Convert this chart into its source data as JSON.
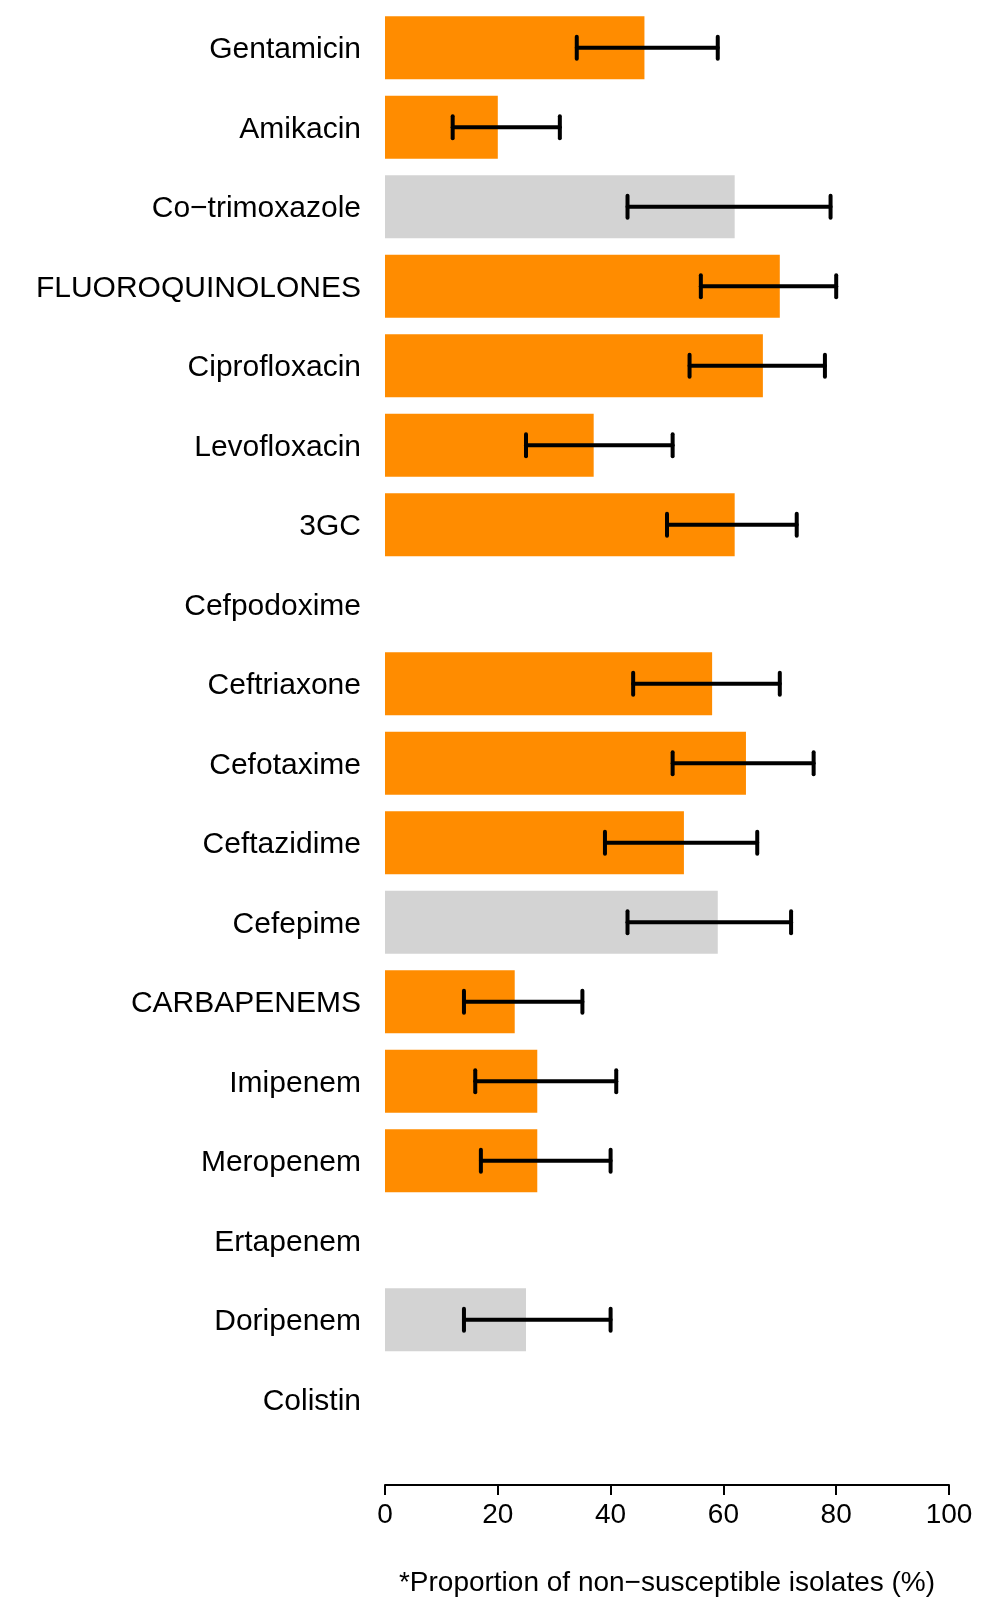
{
  "chart_data": {
    "type": "bar",
    "orientation": "horizontal",
    "xlabel": "*Proportion of non−susceptible isolates (%)",
    "categories": [
      "Gentamicin",
      "Amikacin",
      "Co−trimoxazole",
      "FLUOROQUINOLONES",
      "Ciprofloxacin",
      "Levofloxacin",
      "3GC",
      "Cefpodoxime",
      "Ceftriaxone",
      "Cefotaxime",
      "Ceftazidime",
      "Cefepime",
      "CARBAPENEMS",
      "Imipenem",
      "Meropenem",
      "Ertapenem",
      "Doripenem",
      "Colistin"
    ],
    "values": [
      46,
      20,
      62,
      70,
      67,
      37,
      62,
      null,
      58,
      64,
      53,
      59,
      23,
      27,
      27,
      null,
      25,
      null
    ],
    "colors": [
      "#ff8c00",
      "#ff8c00",
      "#d3d3d3",
      "#ff8c00",
      "#ff8c00",
      "#ff8c00",
      "#ff8c00",
      "#ff8c00",
      "#ff8c00",
      "#ff8c00",
      "#ff8c00",
      "#d3d3d3",
      "#ff8c00",
      "#ff8c00",
      "#ff8c00",
      "#ff8c00",
      "#d3d3d3",
      "#ff8c00"
    ],
    "errors": [
      [
        34,
        59
      ],
      [
        12,
        31
      ],
      [
        43,
        79
      ],
      [
        56,
        80
      ],
      [
        54,
        78
      ],
      [
        25,
        51
      ],
      [
        50,
        73
      ],
      null,
      [
        44,
        70
      ],
      [
        51,
        76
      ],
      [
        39,
        66
      ],
      [
        43,
        72
      ],
      [
        14,
        35
      ],
      [
        16,
        41
      ],
      [
        17,
        40
      ],
      null,
      [
        14,
        40
      ],
      null
    ],
    "xlim": [
      0,
      100
    ],
    "xticks": [
      0,
      20,
      40,
      60,
      80,
      100
    ],
    "grid": false
  }
}
